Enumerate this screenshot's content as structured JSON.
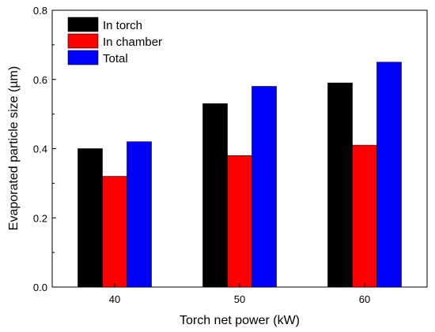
{
  "chart_data": {
    "type": "bar",
    "title": "",
    "xlabel": "Torch net power (kW)",
    "ylabel": "Evaporated particle size (µm)",
    "categories": [
      "40",
      "50",
      "60"
    ],
    "ylim": [
      0,
      0.8
    ],
    "yticks": [
      "0.0",
      "0.2",
      "0.4",
      "0.6",
      "0.8"
    ],
    "grid": false,
    "legend_position": "top-left",
    "series": [
      {
        "name": "In torch",
        "color": "#000000",
        "values": [
          0.4,
          0.53,
          0.59
        ]
      },
      {
        "name": "In chamber",
        "color": "#ff0000",
        "values": [
          0.32,
          0.38,
          0.41
        ]
      },
      {
        "name": "Total",
        "color": "#0000ff",
        "values": [
          0.42,
          0.58,
          0.65
        ]
      }
    ]
  }
}
